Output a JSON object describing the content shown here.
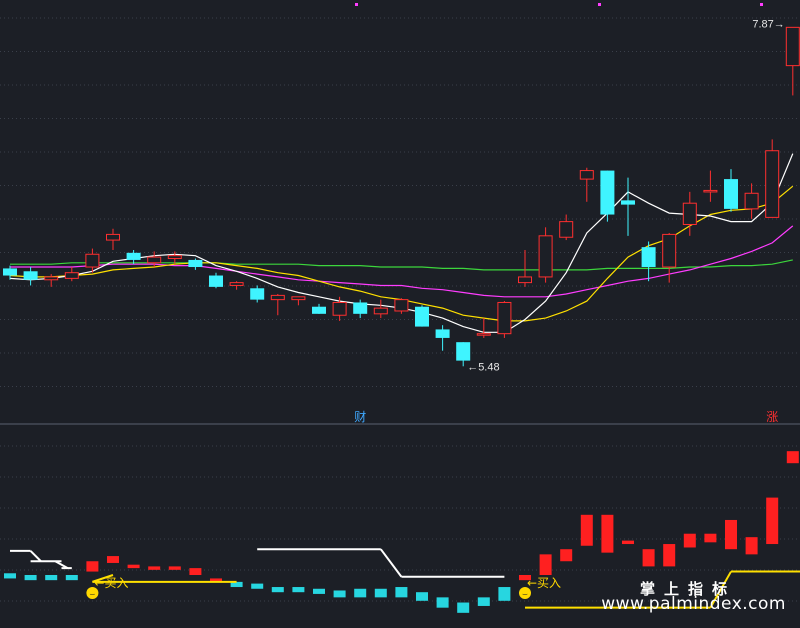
{
  "chart_data": [
    {
      "type": "candlestick",
      "panel": "price",
      "ylim": [
        5.2,
        7.95
      ],
      "grid": "horizontal dashed",
      "colors": {
        "up": "#ff2f2f",
        "down": "#3ff4ff",
        "ma5": "#ffffff",
        "ma10": "#ffe000",
        "ma20": "#ff3dff",
        "ma60": "#3cd63c",
        "background": "#1c1f26"
      },
      "candles": [
        {
          "o": 6.17,
          "h": 6.19,
          "l": 6.09,
          "c": 6.12
        },
        {
          "o": 6.15,
          "h": 6.18,
          "l": 6.05,
          "c": 6.09
        },
        {
          "o": 6.09,
          "h": 6.13,
          "l": 6.04,
          "c": 6.11
        },
        {
          "o": 6.1,
          "h": 6.18,
          "l": 6.08,
          "c": 6.14
        },
        {
          "o": 6.18,
          "h": 6.31,
          "l": 6.14,
          "c": 6.27
        },
        {
          "o": 6.37,
          "h": 6.45,
          "l": 6.3,
          "c": 6.41
        },
        {
          "o": 6.28,
          "h": 6.3,
          "l": 6.2,
          "c": 6.23
        },
        {
          "o": 6.21,
          "h": 6.29,
          "l": 6.18,
          "c": 6.25
        },
        {
          "o": 6.24,
          "h": 6.29,
          "l": 6.2,
          "c": 6.26
        },
        {
          "o": 6.23,
          "h": 6.24,
          "l": 6.16,
          "c": 6.18
        },
        {
          "o": 6.12,
          "h": 6.14,
          "l": 6.03,
          "c": 6.04
        },
        {
          "o": 6.05,
          "h": 6.08,
          "l": 6.02,
          "c": 6.07
        },
        {
          "o": 6.03,
          "h": 6.05,
          "l": 5.93,
          "c": 5.95
        },
        {
          "o": 5.95,
          "h": 5.99,
          "l": 5.84,
          "c": 5.98
        },
        {
          "o": 5.95,
          "h": 5.97,
          "l": 5.91,
          "c": 5.97
        },
        {
          "o": 5.9,
          "h": 5.92,
          "l": 5.85,
          "c": 5.85
        },
        {
          "o": 5.84,
          "h": 5.97,
          "l": 5.8,
          "c": 5.93
        },
        {
          "o": 5.93,
          "h": 5.95,
          "l": 5.82,
          "c": 5.85
        },
        {
          "o": 5.85,
          "h": 5.95,
          "l": 5.82,
          "c": 5.89
        },
        {
          "o": 5.87,
          "h": 5.96,
          "l": 5.85,
          "c": 5.95
        },
        {
          "o": 5.9,
          "h": 5.91,
          "l": 5.76,
          "c": 5.76
        },
        {
          "o": 5.74,
          "h": 5.77,
          "l": 5.59,
          "c": 5.68
        },
        {
          "o": 5.65,
          "h": 5.65,
          "l": 5.48,
          "c": 5.52
        },
        {
          "o": 5.71,
          "h": 5.82,
          "l": 5.68,
          "c": 5.71
        },
        {
          "o": 5.71,
          "h": 5.94,
          "l": 5.68,
          "c": 5.93
        },
        {
          "o": 6.07,
          "h": 6.3,
          "l": 6.04,
          "c": 6.11
        },
        {
          "o": 6.11,
          "h": 6.46,
          "l": 6.07,
          "c": 6.4
        },
        {
          "o": 6.39,
          "h": 6.55,
          "l": 6.37,
          "c": 6.5
        },
        {
          "o": 6.8,
          "h": 6.88,
          "l": 6.64,
          "c": 6.86
        },
        {
          "o": 6.86,
          "h": 6.86,
          "l": 6.5,
          "c": 6.55
        },
        {
          "o": 6.65,
          "h": 6.81,
          "l": 6.4,
          "c": 6.62
        },
        {
          "o": 6.32,
          "h": 6.36,
          "l": 6.08,
          "c": 6.18
        },
        {
          "o": 6.18,
          "h": 6.42,
          "l": 6.07,
          "c": 6.41
        },
        {
          "o": 6.48,
          "h": 6.71,
          "l": 6.4,
          "c": 6.63
        },
        {
          "o": 6.72,
          "h": 6.86,
          "l": 6.64,
          "c": 6.72
        },
        {
          "o": 6.8,
          "h": 6.87,
          "l": 6.57,
          "c": 6.59
        },
        {
          "o": 6.59,
          "h": 6.77,
          "l": 6.52,
          "c": 6.7
        },
        {
          "o": 6.53,
          "h": 7.08,
          "l": 6.53,
          "c": 7.0
        },
        {
          "o": 7.6,
          "h": 7.87,
          "l": 7.39,
          "c": 7.87
        }
      ],
      "ma5": [
        6.1,
        6.09,
        6.1,
        6.12,
        6.15,
        6.22,
        6.24,
        6.26,
        6.27,
        6.26,
        6.19,
        6.15,
        6.1,
        6.04,
        6.0,
        5.97,
        5.94,
        5.92,
        5.91,
        5.89,
        5.86,
        5.82,
        5.76,
        5.72,
        5.72,
        5.81,
        5.94,
        6.14,
        6.42,
        6.56,
        6.71,
        6.63,
        6.56,
        6.55,
        6.54,
        6.5,
        6.5,
        6.63,
        6.98
      ],
      "ma10": [
        6.12,
        6.11,
        6.11,
        6.12,
        6.13,
        6.16,
        6.17,
        6.18,
        6.2,
        6.21,
        6.21,
        6.19,
        6.17,
        6.14,
        6.12,
        6.08,
        6.04,
        6.01,
        5.97,
        5.95,
        5.92,
        5.89,
        5.84,
        5.82,
        5.8,
        5.8,
        5.82,
        5.87,
        5.94,
        6.1,
        6.25,
        6.33,
        6.38,
        6.47,
        6.55,
        6.58,
        6.59,
        6.63,
        6.75
      ],
      "ma20": [
        6.18,
        6.18,
        6.18,
        6.18,
        6.19,
        6.2,
        6.2,
        6.2,
        6.19,
        6.19,
        6.17,
        6.15,
        6.13,
        6.11,
        6.09,
        6.08,
        6.07,
        6.06,
        6.05,
        6.05,
        6.03,
        6.02,
        6.0,
        5.98,
        5.97,
        5.97,
        5.97,
        5.99,
        6.02,
        6.05,
        6.08,
        6.1,
        6.13,
        6.16,
        6.2,
        6.24,
        6.29,
        6.35,
        6.47
      ],
      "ma60": [
        6.2,
        6.2,
        6.2,
        6.21,
        6.21,
        6.21,
        6.21,
        6.21,
        6.21,
        6.21,
        6.21,
        6.2,
        6.2,
        6.2,
        6.2,
        6.19,
        6.19,
        6.19,
        6.18,
        6.18,
        6.18,
        6.17,
        6.17,
        6.16,
        6.16,
        6.16,
        6.16,
        6.16,
        6.16,
        6.17,
        6.17,
        6.17,
        6.17,
        6.18,
        6.18,
        6.19,
        6.19,
        6.2,
        6.23
      ],
      "annotations": [
        {
          "label": "7.87",
          "candle": 38,
          "value": 7.87,
          "arrow": "→",
          "side": "left"
        },
        {
          "label": "5.48",
          "candle": 22,
          "value": 5.48,
          "arrow": "←",
          "side": "right"
        },
        {
          "label": "财",
          "candle": 17,
          "marker": "bottom",
          "color": "#3fa9ff"
        },
        {
          "label": "涨",
          "candle": 37,
          "marker": "bottom",
          "color": "#ff3030"
        }
      ]
    },
    {
      "type": "indicator",
      "panel": "lower",
      "ylim": [
        0,
        100
      ],
      "grid": "horizontal dashed",
      "bars": [
        {
          "top": 26,
          "bottom": 23,
          "color": "cyan"
        },
        {
          "top": 25,
          "bottom": 22,
          "color": "cyan"
        },
        {
          "top": 25,
          "bottom": 22,
          "color": "cyan"
        },
        {
          "top": 25,
          "bottom": 22,
          "color": "cyan"
        },
        {
          "top": 33,
          "bottom": 27,
          "color": "red"
        },
        {
          "top": 36,
          "bottom": 32,
          "color": "red"
        },
        {
          "top": 31,
          "bottom": 29,
          "color": "red"
        },
        {
          "top": 30,
          "bottom": 28,
          "color": "red"
        },
        {
          "top": 30,
          "bottom": 28,
          "color": "red"
        },
        {
          "top": 29,
          "bottom": 25,
          "color": "red"
        },
        {
          "top": 23,
          "bottom": 21,
          "color": "red"
        },
        {
          "top": 21,
          "bottom": 18,
          "color": "cyan"
        },
        {
          "top": 20,
          "bottom": 17,
          "color": "cyan"
        },
        {
          "top": 18,
          "bottom": 15,
          "color": "cyan"
        },
        {
          "top": 18,
          "bottom": 15,
          "color": "cyan"
        },
        {
          "top": 17,
          "bottom": 14,
          "color": "cyan"
        },
        {
          "top": 16,
          "bottom": 12,
          "color": "cyan"
        },
        {
          "top": 17,
          "bottom": 12,
          "color": "cyan"
        },
        {
          "top": 17,
          "bottom": 12,
          "color": "cyan"
        },
        {
          "top": 18,
          "bottom": 12,
          "color": "cyan"
        },
        {
          "top": 15,
          "bottom": 10,
          "color": "cyan"
        },
        {
          "top": 12,
          "bottom": 6,
          "color": "cyan"
        },
        {
          "top": 9,
          "bottom": 3,
          "color": "cyan"
        },
        {
          "top": 12,
          "bottom": 7,
          "color": "cyan"
        },
        {
          "top": 18,
          "bottom": 10,
          "color": "cyan"
        },
        {
          "top": 25,
          "bottom": 22,
          "color": "red"
        },
        {
          "top": 37,
          "bottom": 25,
          "color": "red"
        },
        {
          "top": 40,
          "bottom": 33,
          "color": "red"
        },
        {
          "top": 60,
          "bottom": 42,
          "color": "red"
        },
        {
          "top": 60,
          "bottom": 38,
          "color": "red"
        },
        {
          "top": 45,
          "bottom": 43,
          "color": "red"
        },
        {
          "top": 40,
          "bottom": 30,
          "color": "red"
        },
        {
          "top": 43,
          "bottom": 30,
          "color": "red"
        },
        {
          "top": 49,
          "bottom": 41,
          "color": "red"
        },
        {
          "top": 49,
          "bottom": 44,
          "color": "red"
        },
        {
          "top": 57,
          "bottom": 40,
          "color": "red"
        },
        {
          "top": 47,
          "bottom": 37,
          "color": "red"
        },
        {
          "top": 70,
          "bottom": 43,
          "color": "red"
        },
        {
          "top": 97,
          "bottom": 90,
          "color": "red"
        }
      ],
      "white_line": [
        {
          "from": 0,
          "to": 1,
          "value": 39
        },
        {
          "from": 1,
          "to": 2.5,
          "value": 33
        },
        {
          "from": 2.5,
          "to": 3,
          "value": 29
        },
        {
          "from": 12,
          "to": 18,
          "value": 40
        },
        {
          "from": 19,
          "to": 24,
          "value": 24
        }
      ],
      "white_line_slopes": [
        {
          "from": [
            1,
            39
          ],
          "to": [
            1.5,
            33
          ]
        },
        {
          "from": [
            2.2,
            33
          ],
          "to": [
            2.8,
            29
          ]
        },
        {
          "from": [
            18,
            40
          ],
          "to": [
            19,
            24
          ]
        }
      ],
      "yellow_line": [
        {
          "from": 4,
          "to": 11,
          "value": 21
        },
        {
          "from": 25,
          "to": 34,
          "value": 6
        },
        {
          "from": 35,
          "to": 39,
          "value": 27
        }
      ],
      "yellow_line_slopes": [
        {
          "from": [
            4,
            21
          ],
          "to": [
            5,
            25
          ]
        },
        {
          "from": [
            34,
            6
          ],
          "to": [
            35,
            27
          ]
        }
      ],
      "signals": [
        {
          "label": "买入",
          "candle": 4,
          "arrow": "←",
          "marker": "☻"
        },
        {
          "label": "买入",
          "candle": 25,
          "arrow": "←",
          "marker": "☻"
        }
      ]
    }
  ],
  "watermark": {
    "cn": "掌上指标",
    "url": "www.palmindex.com"
  }
}
